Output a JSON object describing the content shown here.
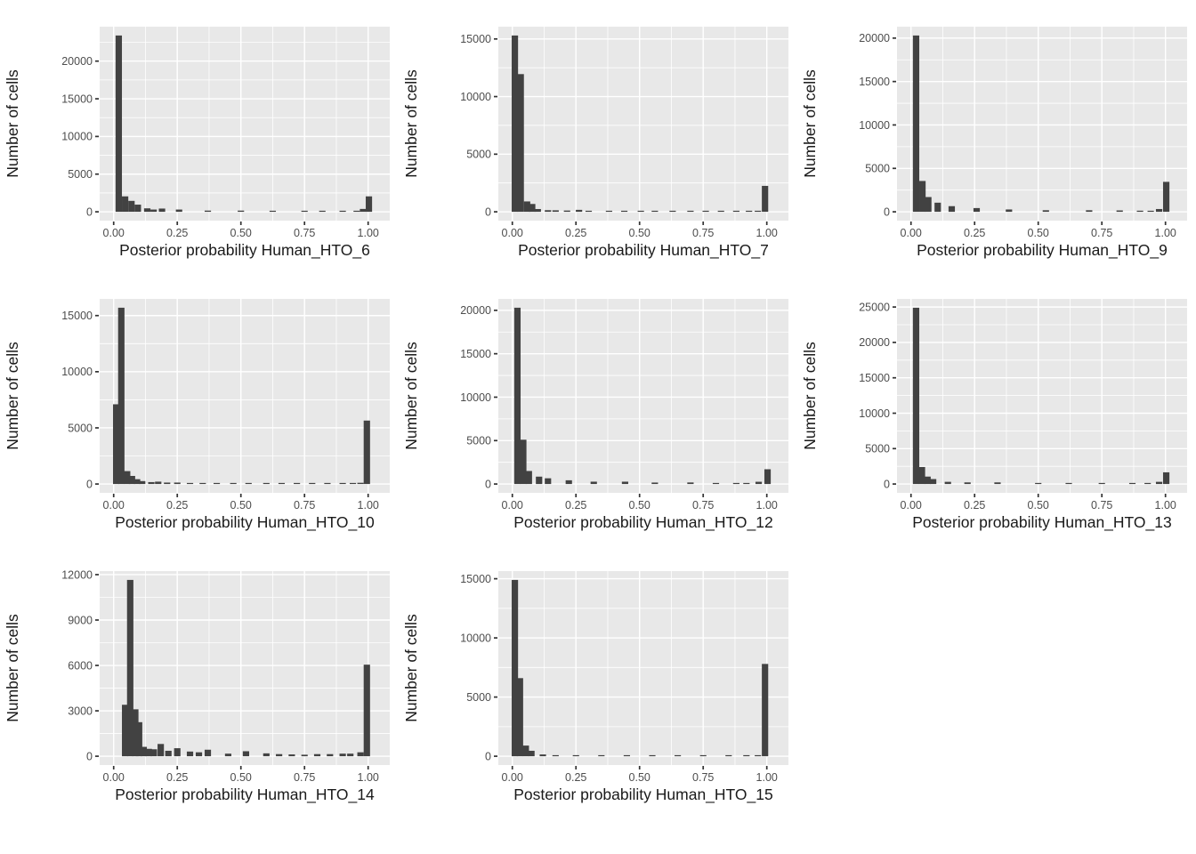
{
  "figure": {
    "ylabel": "Number of cells",
    "xticks": {
      "values": [
        0,
        0.25,
        0.5,
        0.75,
        1.0
      ],
      "labels": [
        "0.00",
        "0.25",
        "0.50",
        "0.75",
        "1.00"
      ]
    },
    "x_minor": [
      0.125,
      0.375,
      0.625,
      0.875
    ],
    "bin_width": 0.025,
    "colors": {
      "panel_background": "#E8E8E8",
      "grid_line": "#FFFFFF",
      "bar_fill": "#424242",
      "tick_mark": "#333333",
      "tick_label": "#4D4D4D",
      "axis_title": "#1A1A1A"
    }
  },
  "chart_data": [
    {
      "type": "bar",
      "subtype": "histogram",
      "xlabel": "Posterior probability Human_HTO_6",
      "ylabel": "Number of cells",
      "yticks": [
        0,
        5000,
        10000,
        15000,
        20000
      ],
      "y_minor_step": 2500,
      "xlim": [
        -0.055,
        1.085
      ],
      "bars": [
        [
          0.02,
          23400
        ],
        [
          0.045,
          2050
        ],
        [
          0.07,
          1450
        ],
        [
          0.095,
          950
        ],
        [
          0.132,
          460
        ],
        [
          0.157,
          300
        ],
        [
          0.19,
          430
        ],
        [
          0.257,
          300
        ],
        [
          0.37,
          160
        ],
        [
          0.5,
          160
        ],
        [
          0.625,
          120
        ],
        [
          0.75,
          90
        ],
        [
          0.82,
          60
        ],
        [
          0.9,
          70
        ],
        [
          0.955,
          130
        ],
        [
          0.98,
          380
        ],
        [
          1.003,
          2050
        ]
      ]
    },
    {
      "type": "bar",
      "subtype": "histogram",
      "xlabel": "Posterior probability Human_HTO_7",
      "ylabel": "Number of cells",
      "yticks": [
        0,
        5000,
        10000,
        15000
      ],
      "y_minor_step": 2500,
      "xlim": [
        -0.055,
        1.085
      ],
      "bars": [
        [
          0.01,
          15300
        ],
        [
          0.033,
          11950
        ],
        [
          0.058,
          900
        ],
        [
          0.078,
          680
        ],
        [
          0.1,
          240
        ],
        [
          0.14,
          140
        ],
        [
          0.17,
          130
        ],
        [
          0.215,
          110
        ],
        [
          0.262,
          170
        ],
        [
          0.3,
          90
        ],
        [
          0.38,
          70
        ],
        [
          0.44,
          70
        ],
        [
          0.505,
          90
        ],
        [
          0.56,
          50
        ],
        [
          0.63,
          60
        ],
        [
          0.7,
          60
        ],
        [
          0.76,
          50
        ],
        [
          0.82,
          60
        ],
        [
          0.88,
          60
        ],
        [
          0.93,
          80
        ],
        [
          0.965,
          60
        ],
        [
          0.993,
          2250
        ]
      ]
    },
    {
      "type": "bar",
      "subtype": "histogram",
      "xlabel": "Posterior probability Human_HTO_9",
      "ylabel": "Number of cells",
      "yticks": [
        0,
        5000,
        10000,
        15000,
        20000
      ],
      "y_minor_step": 2500,
      "xlim": [
        -0.055,
        1.085
      ],
      "bars": [
        [
          0.02,
          20300
        ],
        [
          0.045,
          3550
        ],
        [
          0.068,
          1700
        ],
        [
          0.105,
          1050
        ],
        [
          0.16,
          650
        ],
        [
          0.258,
          430
        ],
        [
          0.385,
          270
        ],
        [
          0.53,
          180
        ],
        [
          0.7,
          180
        ],
        [
          0.82,
          160
        ],
        [
          0.9,
          130
        ],
        [
          0.942,
          100
        ],
        [
          0.975,
          320
        ],
        [
          1.003,
          3450
        ]
      ]
    },
    {
      "type": "bar",
      "subtype": "histogram",
      "xlabel": "Posterior probability Human_HTO_10",
      "ylabel": "Number of cells",
      "yticks": [
        0,
        5000,
        10000,
        15000
      ],
      "y_minor_step": 2500,
      "xlim": [
        -0.055,
        1.085
      ],
      "bars": [
        [
          0.01,
          7100
        ],
        [
          0.03,
          15700
        ],
        [
          0.053,
          1150
        ],
        [
          0.072,
          720
        ],
        [
          0.092,
          430
        ],
        [
          0.112,
          260
        ],
        [
          0.148,
          170
        ],
        [
          0.175,
          210
        ],
        [
          0.21,
          130
        ],
        [
          0.25,
          130
        ],
        [
          0.3,
          90
        ],
        [
          0.35,
          80
        ],
        [
          0.405,
          70
        ],
        [
          0.47,
          70
        ],
        [
          0.53,
          70
        ],
        [
          0.6,
          80
        ],
        [
          0.66,
          70
        ],
        [
          0.72,
          70
        ],
        [
          0.78,
          70
        ],
        [
          0.84,
          80
        ],
        [
          0.9,
          90
        ],
        [
          0.94,
          80
        ],
        [
          0.97,
          110
        ],
        [
          0.995,
          5650
        ]
      ]
    },
    {
      "type": "bar",
      "subtype": "histogram",
      "xlabel": "Posterior probability Human_HTO_12",
      "ylabel": "Number of cells",
      "yticks": [
        0,
        5000,
        10000,
        15000,
        20000
      ],
      "y_minor_step": 2500,
      "xlim": [
        -0.055,
        1.085
      ],
      "bars": [
        [
          0.02,
          20300
        ],
        [
          0.043,
          5100
        ],
        [
          0.065,
          1500
        ],
        [
          0.105,
          850
        ],
        [
          0.14,
          660
        ],
        [
          0.222,
          430
        ],
        [
          0.32,
          270
        ],
        [
          0.443,
          270
        ],
        [
          0.56,
          170
        ],
        [
          0.7,
          180
        ],
        [
          0.8,
          110
        ],
        [
          0.88,
          100
        ],
        [
          0.92,
          100
        ],
        [
          0.968,
          260
        ],
        [
          1.003,
          1700
        ]
      ]
    },
    {
      "type": "bar",
      "subtype": "histogram",
      "xlabel": "Posterior probability Human_HTO_13",
      "ylabel": "Number of cells",
      "yticks": [
        0,
        5000,
        10000,
        15000,
        20000,
        25000
      ],
      "y_minor_step": 2500,
      "xlim": [
        -0.055,
        1.085
      ],
      "bars": [
        [
          0.02,
          24900
        ],
        [
          0.043,
          2400
        ],
        [
          0.065,
          1050
        ],
        [
          0.087,
          700
        ],
        [
          0.145,
          310
        ],
        [
          0.222,
          230
        ],
        [
          0.34,
          230
        ],
        [
          0.5,
          130
        ],
        [
          0.62,
          120
        ],
        [
          0.75,
          120
        ],
        [
          0.87,
          110
        ],
        [
          0.93,
          90
        ],
        [
          0.975,
          310
        ],
        [
          1.003,
          1650
        ]
      ]
    },
    {
      "type": "bar",
      "subtype": "histogram",
      "xlabel": "Posterior probability Human_HTO_14",
      "ylabel": "Number of cells",
      "yticks": [
        0,
        3000,
        6000,
        9000,
        12000
      ],
      "y_minor_step": 1500,
      "xlim": [
        -0.055,
        1.085
      ],
      "bars": [
        [
          0.045,
          3400
        ],
        [
          0.065,
          11650
        ],
        [
          0.085,
          3100
        ],
        [
          0.1,
          2250
        ],
        [
          0.118,
          620
        ],
        [
          0.138,
          490
        ],
        [
          0.158,
          460
        ],
        [
          0.185,
          810
        ],
        [
          0.215,
          360
        ],
        [
          0.25,
          530
        ],
        [
          0.3,
          310
        ],
        [
          0.335,
          260
        ],
        [
          0.37,
          430
        ],
        [
          0.45,
          170
        ],
        [
          0.52,
          330
        ],
        [
          0.6,
          190
        ],
        [
          0.65,
          140
        ],
        [
          0.7,
          120
        ],
        [
          0.75,
          100
        ],
        [
          0.8,
          140
        ],
        [
          0.85,
          140
        ],
        [
          0.9,
          170
        ],
        [
          0.93,
          170
        ],
        [
          0.97,
          260
        ],
        [
          0.995,
          6050
        ]
      ]
    },
    {
      "type": "bar",
      "subtype": "histogram",
      "xlabel": "Posterior probability Human_HTO_15",
      "ylabel": "Number of cells",
      "yticks": [
        0,
        5000,
        10000,
        15000
      ],
      "y_minor_step": 2500,
      "xlim": [
        -0.055,
        1.085
      ],
      "bars": [
        [
          0.01,
          14900
        ],
        [
          0.03,
          6600
        ],
        [
          0.053,
          900
        ],
        [
          0.075,
          460
        ],
        [
          0.12,
          150
        ],
        [
          0.17,
          70
        ],
        [
          0.25,
          60
        ],
        [
          0.35,
          50
        ],
        [
          0.45,
          60
        ],
        [
          0.55,
          50
        ],
        [
          0.65,
          50
        ],
        [
          0.75,
          50
        ],
        [
          0.85,
          60
        ],
        [
          0.92,
          70
        ],
        [
          0.965,
          90
        ],
        [
          0.993,
          7800
        ]
      ]
    }
  ]
}
